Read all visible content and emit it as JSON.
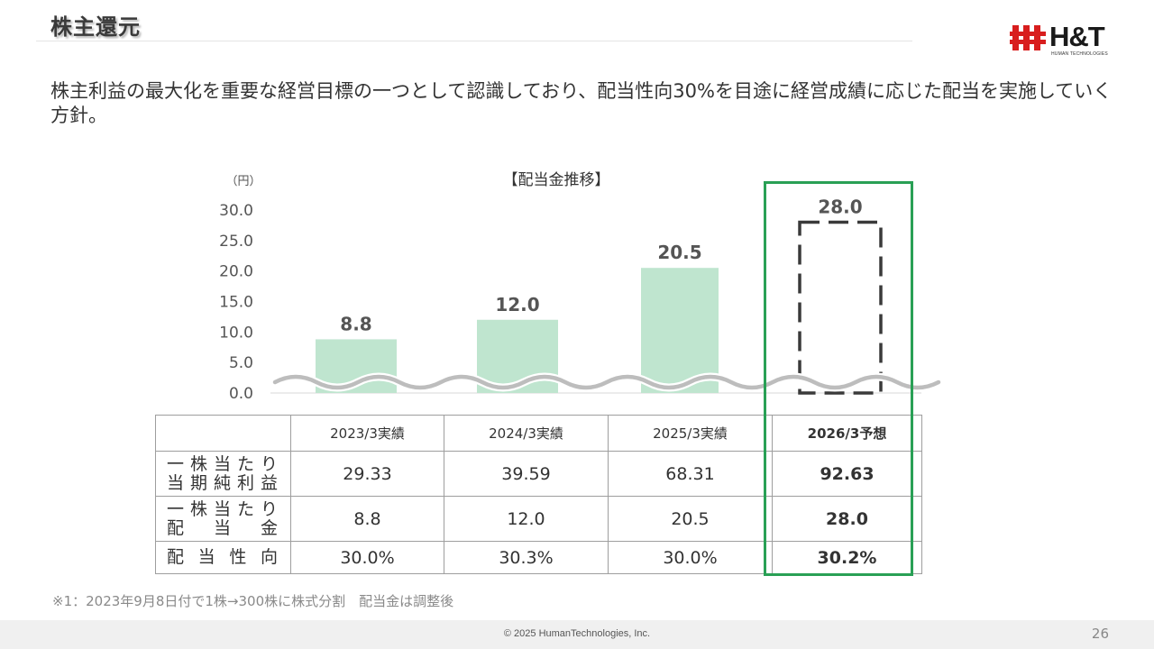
{
  "header": {
    "title": "株主還元"
  },
  "logo": {
    "text": "H&T",
    "sub": "HUMAN TECHNOLOGIES"
  },
  "lead_text": "株主利益の最大化を重要な経営目標の一つとして認識しており、配当性向30%を目途に経営成績に応じた配当を実施していく方針。",
  "chart_data": {
    "type": "bar",
    "title": "【配当金推移】",
    "ylabel": "（円）",
    "ylim": [
      0,
      30
    ],
    "yticks": [
      "0.0",
      "5.0",
      "10.0",
      "15.0",
      "20.0",
      "25.0",
      "30.0"
    ],
    "categories": [
      "2023/3実績",
      "2024/3実績",
      "2025/3実績",
      "2026/3予想"
    ],
    "values": [
      8.8,
      12.0,
      20.5,
      28.0
    ],
    "value_labels": [
      "8.8",
      "12.0",
      "20.5",
      "28.0"
    ],
    "forecast": [
      false,
      false,
      false,
      true
    ],
    "bar_color": "#bfe5cf",
    "axis_break": true
  },
  "table": {
    "headers": [
      "2023/3実績",
      "2024/3実績",
      "2025/3実績",
      "2026/3予想"
    ],
    "rows": [
      {
        "label": [
          "一株当たり",
          "当期純利益"
        ],
        "values": [
          "29.33",
          "39.59",
          "68.31",
          "92.63"
        ]
      },
      {
        "label": [
          "一株当たり",
          "配当金"
        ],
        "values": [
          "8.8",
          "12.0",
          "20.5",
          "28.0"
        ]
      },
      {
        "label": [
          "配当性向"
        ],
        "values": [
          "30.0%",
          "30.3%",
          "30.0%",
          "30.2%"
        ]
      }
    ]
  },
  "colors": {
    "highlight": "#29a055",
    "bar": "#bfe5cf"
  },
  "note": "※1：2023年9月8日付で1株→300株に株式分割　配当金は調整後",
  "footer": {
    "copyright": "© 2025  HumanTechnologies, Inc.",
    "page": "26"
  }
}
